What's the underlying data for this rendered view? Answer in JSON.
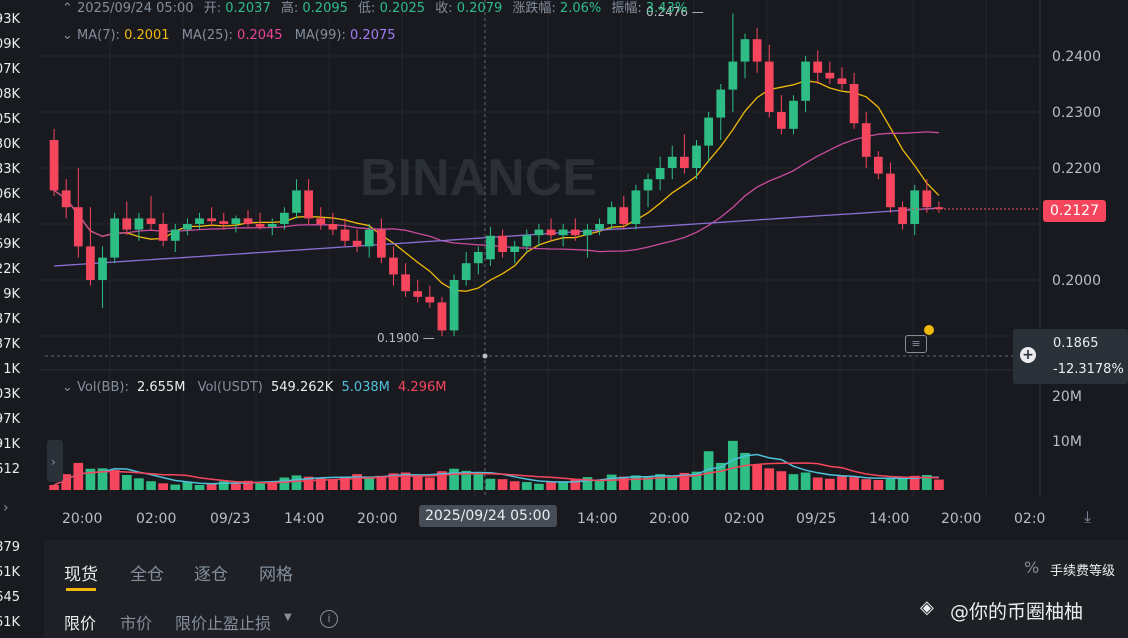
{
  "left_prices": [
    "93K",
    "09K",
    "07K",
    "08K",
    "05K",
    "30K",
    "83K",
    "06K",
    "34K",
    "69K",
    "22K",
    "9K",
    "87K",
    "37K",
    "1K",
    "03K",
    "97K",
    "91K",
    "612"
  ],
  "left_prices_bottom": [
    "879",
    "61K",
    "645",
    "61K"
  ],
  "ohlc_header": {
    "datetime": "2025/09/24 05:00",
    "open_label": "开:",
    "open": "0.2037",
    "high_label": "高:",
    "high": "0.2095",
    "low_label": "低:",
    "low": "0.2025",
    "close_label": "收:",
    "close": "0.2079",
    "change_label": "涨跌幅:",
    "change": "2.06%",
    "amp_label": "振幅:",
    "amp": "3.43%"
  },
  "ma_legend": {
    "ma7_label": "MA(7):",
    "ma7": "0.2001",
    "ma25_label": "MA(25):",
    "ma25": "0.2045",
    "ma99_label": "MA(99):",
    "ma99": "0.2075"
  },
  "vol_legend": {
    "vol_bb_label": "Vol(BB):",
    "vol_bb": "2.655M",
    "vol_usdt_label": "Vol(USDT)",
    "vol_usdt": "549.262K",
    "v1": "5.038M",
    "v2": "4.296M"
  },
  "price_axis": [
    "0.2400",
    "0.2300",
    "0.2200",
    "0.2000"
  ],
  "vol_axis": [
    "20M",
    "10M"
  ],
  "current_price": "0.2127",
  "crosshair_price": "0.1865",
  "crosshair_pct": "-12.3178%",
  "high_marker": "0.2476",
  "low_marker": "0.1900",
  "time_axis": [
    "20:00",
    "02:00",
    "09/23",
    "14:00",
    "20:00",
    "14:00",
    "20:00",
    "02:00",
    "09/25",
    "14:00",
    "20:00",
    "02:0"
  ],
  "crosshair_time": "2025/09/24 05:00",
  "watermark": "BINANCE",
  "tabs": [
    "现货",
    "全仓",
    "逐仓",
    "网格"
  ],
  "fee_label": "手续费等级",
  "order_types": [
    "限价",
    "市价",
    "限价止盈止损"
  ],
  "watermark_author": "@你的币圈柚柚",
  "colors": {
    "up": "#2ebd85",
    "down": "#f6465d",
    "ma7": "#f0b90b",
    "ma25": "#c94c9b",
    "ma99": "#8b6fd6",
    "vol_ma1": "#4fc1d9",
    "vol_ma2": "#f6465d"
  },
  "chart_data": {
    "type": "candlestick",
    "y_range": [
      0.1865,
      0.2476
    ],
    "candles": [
      [
        0.225,
        0.227,
        0.215,
        0.216
      ],
      [
        0.216,
        0.218,
        0.211,
        0.213
      ],
      [
        0.213,
        0.22,
        0.204,
        0.206
      ],
      [
        0.206,
        0.213,
        0.199,
        0.2
      ],
      [
        0.2,
        0.206,
        0.195,
        0.204
      ],
      [
        0.204,
        0.212,
        0.203,
        0.211
      ],
      [
        0.211,
        0.214,
        0.208,
        0.209
      ],
      [
        0.209,
        0.212,
        0.207,
        0.211
      ],
      [
        0.211,
        0.215,
        0.209,
        0.21
      ],
      [
        0.21,
        0.212,
        0.206,
        0.207
      ],
      [
        0.207,
        0.21,
        0.205,
        0.209
      ],
      [
        0.209,
        0.211,
        0.208,
        0.21
      ],
      [
        0.21,
        0.212,
        0.209,
        0.211
      ],
      [
        0.211,
        0.213,
        0.2095,
        0.2105
      ],
      [
        0.2105,
        0.212,
        0.209,
        0.21
      ],
      [
        0.21,
        0.2115,
        0.2085,
        0.211
      ],
      [
        0.211,
        0.2125,
        0.2095,
        0.21
      ],
      [
        0.21,
        0.212,
        0.209,
        0.2095
      ],
      [
        0.2095,
        0.211,
        0.208,
        0.21
      ],
      [
        0.21,
        0.213,
        0.209,
        0.212
      ],
      [
        0.212,
        0.218,
        0.211,
        0.216
      ],
      [
        0.216,
        0.218,
        0.21,
        0.211
      ],
      [
        0.211,
        0.213,
        0.209,
        0.21
      ],
      [
        0.21,
        0.212,
        0.208,
        0.209
      ],
      [
        0.209,
        0.211,
        0.206,
        0.207
      ],
      [
        0.207,
        0.209,
        0.205,
        0.206
      ],
      [
        0.206,
        0.21,
        0.204,
        0.209
      ],
      [
        0.209,
        0.211,
        0.203,
        0.204
      ],
      [
        0.204,
        0.206,
        0.199,
        0.201
      ],
      [
        0.201,
        0.203,
        0.197,
        0.198
      ],
      [
        0.198,
        0.2,
        0.196,
        0.197
      ],
      [
        0.197,
        0.199,
        0.195,
        0.196
      ],
      [
        0.196,
        0.197,
        0.19,
        0.191
      ],
      [
        0.191,
        0.201,
        0.19,
        0.2
      ],
      [
        0.2,
        0.205,
        0.199,
        0.203
      ],
      [
        0.203,
        0.206,
        0.201,
        0.205
      ],
      [
        0.2037,
        0.2095,
        0.2025,
        0.2079
      ],
      [
        0.2079,
        0.209,
        0.204,
        0.205
      ],
      [
        0.205,
        0.207,
        0.203,
        0.206
      ],
      [
        0.206,
        0.209,
        0.205,
        0.208
      ],
      [
        0.208,
        0.21,
        0.206,
        0.209
      ],
      [
        0.209,
        0.211,
        0.207,
        0.208
      ],
      [
        0.208,
        0.21,
        0.206,
        0.209
      ],
      [
        0.209,
        0.211,
        0.207,
        0.208
      ],
      [
        0.208,
        0.21,
        0.204,
        0.209
      ],
      [
        0.209,
        0.211,
        0.208,
        0.21
      ],
      [
        0.21,
        0.214,
        0.209,
        0.213
      ],
      [
        0.213,
        0.215,
        0.209,
        0.21
      ],
      [
        0.21,
        0.217,
        0.209,
        0.216
      ],
      [
        0.216,
        0.219,
        0.213,
        0.218
      ],
      [
        0.218,
        0.222,
        0.216,
        0.22
      ],
      [
        0.22,
        0.224,
        0.218,
        0.222
      ],
      [
        0.222,
        0.226,
        0.219,
        0.22
      ],
      [
        0.22,
        0.225,
        0.218,
        0.224
      ],
      [
        0.224,
        0.23,
        0.221,
        0.229
      ],
      [
        0.229,
        0.235,
        0.225,
        0.234
      ],
      [
        0.234,
        0.2476,
        0.23,
        0.239
      ],
      [
        0.239,
        0.244,
        0.236,
        0.243
      ],
      [
        0.243,
        0.245,
        0.237,
        0.239
      ],
      [
        0.239,
        0.242,
        0.229,
        0.23
      ],
      [
        0.23,
        0.233,
        0.226,
        0.227
      ],
      [
        0.227,
        0.233,
        0.226,
        0.232
      ],
      [
        0.232,
        0.24,
        0.23,
        0.239
      ],
      [
        0.239,
        0.241,
        0.235,
        0.237
      ],
      [
        0.237,
        0.239,
        0.235,
        0.236
      ],
      [
        0.236,
        0.238,
        0.234,
        0.235
      ],
      [
        0.235,
        0.237,
        0.227,
        0.228
      ],
      [
        0.228,
        0.23,
        0.22,
        0.222
      ],
      [
        0.222,
        0.223,
        0.218,
        0.219
      ],
      [
        0.219,
        0.221,
        0.212,
        0.213
      ],
      [
        0.213,
        0.214,
        0.209,
        0.21
      ],
      [
        0.21,
        0.217,
        0.208,
        0.216
      ],
      [
        0.216,
        0.218,
        0.212,
        0.213
      ],
      [
        0.213,
        0.214,
        0.212,
        0.2127
      ]
    ],
    "volumes": [
      [
        1.2,
        0
      ],
      [
        3.8,
        0
      ],
      [
        6.5,
        0
      ],
      [
        5.1,
        1
      ],
      [
        5.2,
        1
      ],
      [
        4.8,
        0
      ],
      [
        3.6,
        1
      ],
      [
        2.8,
        1
      ],
      [
        2.1,
        1
      ],
      [
        1.6,
        0
      ],
      [
        1.3,
        1
      ],
      [
        1.9,
        1
      ],
      [
        1.2,
        1
      ],
      [
        1.5,
        0
      ],
      [
        2.1,
        1
      ],
      [
        1.7,
        0
      ],
      [
        2.2,
        0
      ],
      [
        1.8,
        1
      ],
      [
        2.0,
        0
      ],
      [
        3.0,
        1
      ],
      [
        3.5,
        1
      ],
      [
        3.2,
        0
      ],
      [
        2.8,
        0
      ],
      [
        2.6,
        0
      ],
      [
        3.2,
        0
      ],
      [
        3.8,
        0
      ],
      [
        2.9,
        1
      ],
      [
        3.4,
        0
      ],
      [
        4.0,
        0
      ],
      [
        4.2,
        0
      ],
      [
        3.6,
        0
      ],
      [
        3.0,
        0
      ],
      [
        4.5,
        0
      ],
      [
        5.1,
        1
      ],
      [
        4.6,
        1
      ],
      [
        3.8,
        1
      ],
      [
        2.7,
        1
      ],
      [
        2.6,
        0
      ],
      [
        2.1,
        0
      ],
      [
        1.9,
        1
      ],
      [
        1.5,
        1
      ],
      [
        1.9,
        0
      ],
      [
        2.1,
        1
      ],
      [
        2.5,
        0
      ],
      [
        3.1,
        1
      ],
      [
        2.4,
        1
      ],
      [
        3.7,
        1
      ],
      [
        3.2,
        0
      ],
      [
        3.5,
        1
      ],
      [
        3.1,
        1
      ],
      [
        3.8,
        1
      ],
      [
        3.2,
        1
      ],
      [
        4.1,
        0
      ],
      [
        4.4,
        1
      ],
      [
        9.3,
        1
      ],
      [
        6.5,
        1
      ],
      [
        11.8,
        1
      ],
      [
        8.9,
        1
      ],
      [
        6.1,
        0
      ],
      [
        5.2,
        0
      ],
      [
        4.5,
        0
      ],
      [
        3.8,
        1
      ],
      [
        4.2,
        1
      ],
      [
        3.0,
        0
      ],
      [
        2.7,
        0
      ],
      [
        3.3,
        0
      ],
      [
        3.1,
        0
      ],
      [
        2.6,
        0
      ],
      [
        2.4,
        0
      ],
      [
        2.7,
        1
      ],
      [
        3.1,
        1
      ],
      [
        3.4,
        0
      ],
      [
        3.6,
        1
      ],
      [
        2.5,
        0
      ]
    ],
    "volume_range": [
      0,
      24
    ]
  }
}
